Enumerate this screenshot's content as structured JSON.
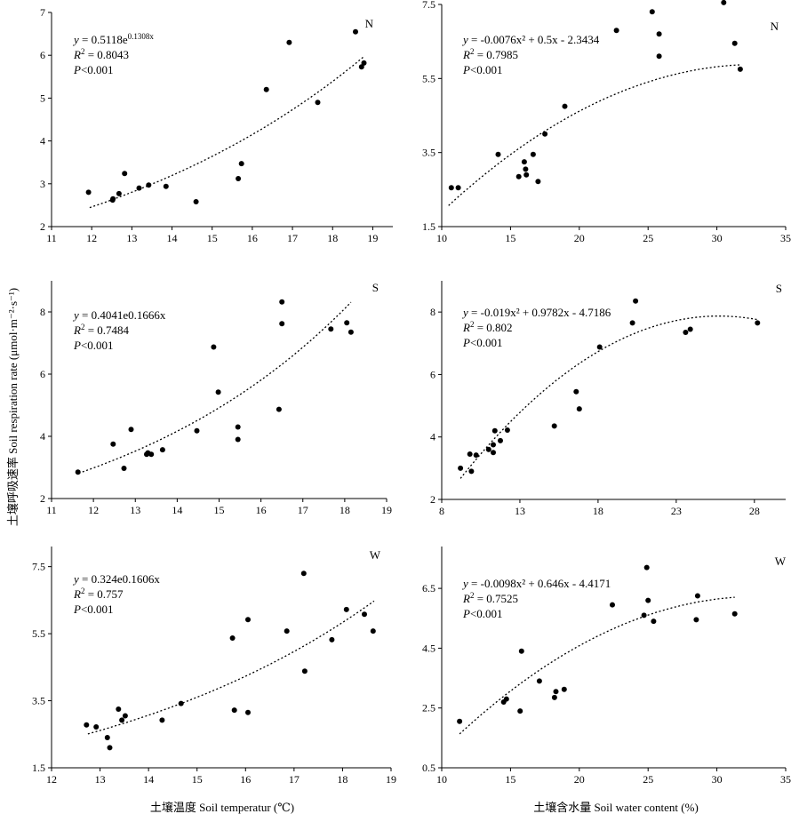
{
  "figure": {
    "ylabel": "土壤呼吸速率 Soil respiration rate (μmol·m⁻²·s⁻¹)",
    "xlabel_left": "土壤温度 Soil temperatur (℃)",
    "xlabel_right": "土壤含水量 Soil water content (%)"
  },
  "chart_data": [
    {
      "type": "scatter",
      "panel": "N",
      "xlim": [
        11,
        19.5
      ],
      "ylim": [
        2,
        7
      ],
      "xticks": [
        11,
        12,
        13,
        14,
        15,
        16,
        17,
        18,
        19
      ],
      "yticks": [
        2,
        3,
        4,
        5,
        6,
        7
      ],
      "fit_type": "exp",
      "a": 0.5118,
      "b": 0.1308,
      "fit_range": [
        11.95,
        18.8
      ],
      "equation": "y = 0.5118e^0.1308x",
      "eq_main": "y = 0.5118e",
      "eq_sup": "0.1308x",
      "r2": "= 0.8043",
      "p": "<0.001",
      "points": [
        [
          11.92,
          2.8
        ],
        [
          12.52,
          2.62
        ],
        [
          12.53,
          2.65
        ],
        [
          12.68,
          2.77
        ],
        [
          12.82,
          3.24
        ],
        [
          13.18,
          2.9
        ],
        [
          13.42,
          2.97
        ],
        [
          13.85,
          2.94
        ],
        [
          14.6,
          2.58
        ],
        [
          15.65,
          3.12
        ],
        [
          15.73,
          3.47
        ],
        [
          16.35,
          5.2
        ],
        [
          16.92,
          6.3
        ],
        [
          17.63,
          4.9
        ],
        [
          18.57,
          6.55
        ],
        [
          18.72,
          5.73
        ],
        [
          18.78,
          5.82
        ]
      ]
    },
    {
      "type": "scatter",
      "panel": "N",
      "xlim": [
        10,
        35
      ],
      "ylim": [
        1.5,
        7.5
      ],
      "xticks": [
        10,
        15,
        20,
        25,
        30,
        35
      ],
      "yticks": [
        1.5,
        3.5,
        5.5,
        7.5
      ],
      "fit_type": "poly",
      "c2": -0.0076,
      "c1": 0.5,
      "c0": -2.3434,
      "fit_range": [
        10.5,
        31.7
      ],
      "equation": "y = -0.0076x² + 0.5x - 2.3434",
      "eq_main": "y = -0.0076x² + 0.5x - 2.3434",
      "eq_sup": "",
      "r2": "= 0.7985",
      "p": "<0.001",
      "points": [
        [
          10.7,
          2.55
        ],
        [
          11.2,
          2.55
        ],
        [
          14.1,
          3.45
        ],
        [
          15.6,
          2.85
        ],
        [
          16.0,
          3.25
        ],
        [
          16.1,
          3.05
        ],
        [
          16.15,
          2.9
        ],
        [
          16.65,
          3.45
        ],
        [
          17.0,
          2.72
        ],
        [
          17.5,
          4.0
        ],
        [
          18.95,
          4.75
        ],
        [
          22.7,
          6.8
        ],
        [
          25.3,
          7.3
        ],
        [
          25.8,
          6.7
        ],
        [
          25.8,
          6.1
        ],
        [
          30.5,
          7.55
        ],
        [
          31.3,
          6.45
        ],
        [
          31.7,
          5.75
        ]
      ]
    },
    {
      "type": "scatter",
      "panel": "S",
      "xlim": [
        11,
        19
      ],
      "ylim": [
        2,
        9
      ],
      "xticks": [
        11,
        12,
        13,
        14,
        15,
        16,
        17,
        18,
        19
      ],
      "yticks": [
        2,
        4,
        6,
        8
      ],
      "fit_type": "exp",
      "a": 0.4041,
      "b": 0.1666,
      "fit_range": [
        11.65,
        18.15
      ],
      "equation": "y = 0.4041e0.1666x",
      "eq_main": "y = 0.4041e0.1666x",
      "eq_sup": "",
      "r2": "= 0.7484",
      "p": "<0.001",
      "points": [
        [
          11.63,
          2.85
        ],
        [
          12.47,
          3.75
        ],
        [
          12.73,
          2.97
        ],
        [
          12.9,
          4.22
        ],
        [
          13.27,
          3.42
        ],
        [
          13.3,
          3.47
        ],
        [
          13.38,
          3.42
        ],
        [
          13.65,
          3.57
        ],
        [
          14.47,
          4.18
        ],
        [
          14.87,
          6.87
        ],
        [
          14.98,
          5.42
        ],
        [
          15.45,
          4.3
        ],
        [
          15.45,
          3.9
        ],
        [
          16.43,
          4.87
        ],
        [
          16.5,
          7.62
        ],
        [
          16.5,
          8.32
        ],
        [
          17.67,
          7.45
        ],
        [
          18.05,
          7.65
        ],
        [
          18.15,
          7.35
        ]
      ]
    },
    {
      "type": "scatter",
      "panel": "S",
      "xlim": [
        8,
        30
      ],
      "ylim": [
        2,
        9
      ],
      "xticks": [
        8,
        13,
        18,
        23,
        28
      ],
      "yticks": [
        2,
        4,
        6,
        8
      ],
      "fit_type": "poly",
      "c2": -0.019,
      "c1": 0.9782,
      "c0": -4.7186,
      "fit_range": [
        9.2,
        28.2
      ],
      "equation": "y = -0.019x² + 0.9782x - 4.7186",
      "eq_main": "y = -0.019x² + 0.9782x - 4.7186",
      "eq_sup": "",
      "r2": "= 0.802",
      "p": "<0.001",
      "points": [
        [
          9.2,
          3.0
        ],
        [
          9.8,
          3.45
        ],
        [
          9.9,
          2.9
        ],
        [
          10.2,
          3.42
        ],
        [
          11.0,
          3.6
        ],
        [
          11.3,
          3.5
        ],
        [
          11.3,
          3.75
        ],
        [
          11.4,
          4.2
        ],
        [
          11.75,
          3.88
        ],
        [
          12.2,
          4.22
        ],
        [
          15.2,
          4.35
        ],
        [
          16.6,
          5.45
        ],
        [
          16.8,
          4.9
        ],
        [
          18.1,
          6.88
        ],
        [
          20.2,
          7.65
        ],
        [
          20.4,
          8.35
        ],
        [
          23.6,
          7.35
        ],
        [
          23.9,
          7.45
        ],
        [
          28.2,
          7.65
        ]
      ]
    },
    {
      "type": "scatter",
      "panel": "W",
      "xlim": [
        12,
        19
      ],
      "ylim": [
        1.5,
        8.1
      ],
      "xticks": [
        12,
        13,
        14,
        15,
        16,
        17,
        18,
        19
      ],
      "yticks": [
        1.5,
        3.5,
        5.5,
        7.5
      ],
      "fit_type": "exp",
      "a": 0.324,
      "b": 0.1606,
      "fit_range": [
        12.75,
        18.65
      ],
      "equation": "y = 0.324e0.1606x",
      "eq_main": "y = 0.324e0.1606x",
      "eq_sup": "",
      "r2": "= 0.757",
      "p": "<0.001",
      "points": [
        [
          12.72,
          2.78
        ],
        [
          12.92,
          2.72
        ],
        [
          13.15,
          2.4
        ],
        [
          13.2,
          2.1
        ],
        [
          13.38,
          3.25
        ],
        [
          13.45,
          2.92
        ],
        [
          13.52,
          3.05
        ],
        [
          14.28,
          2.92
        ],
        [
          14.67,
          3.42
        ],
        [
          15.73,
          5.37
        ],
        [
          15.77,
          3.22
        ],
        [
          16.05,
          3.15
        ],
        [
          16.05,
          5.92
        ],
        [
          16.85,
          5.58
        ],
        [
          17.2,
          7.3
        ],
        [
          17.22,
          4.38
        ],
        [
          17.78,
          5.32
        ],
        [
          18.08,
          6.22
        ],
        [
          18.45,
          6.08
        ],
        [
          18.63,
          5.58
        ]
      ]
    },
    {
      "type": "scatter",
      "panel": "W",
      "xlim": [
        10,
        35
      ],
      "ylim": [
        0.5,
        7.9
      ],
      "xticks": [
        10,
        15,
        20,
        25,
        30,
        35
      ],
      "yticks": [
        0.5,
        2.5,
        4.5,
        6.5
      ],
      "fit_type": "poly",
      "c2": -0.0098,
      "c1": 0.646,
      "c0": -4.4171,
      "fit_range": [
        11.3,
        31.3
      ],
      "equation": "y = -0.0098x² + 0.646x - 4.4171",
      "eq_main": "y = -0.0098x² + 0.646x - 4.4171",
      "eq_sup": "",
      "r2": "= 0.7525",
      "p": "<0.001",
      "points": [
        [
          11.3,
          2.05
        ],
        [
          14.5,
          2.7
        ],
        [
          14.7,
          2.8
        ],
        [
          15.7,
          2.4
        ],
        [
          15.8,
          4.4
        ],
        [
          17.1,
          3.4
        ],
        [
          18.2,
          2.85
        ],
        [
          18.3,
          3.05
        ],
        [
          18.9,
          3.12
        ],
        [
          22.4,
          5.95
        ],
        [
          24.7,
          5.6
        ],
        [
          24.9,
          7.2
        ],
        [
          25.0,
          6.1
        ],
        [
          25.4,
          5.4
        ],
        [
          28.5,
          5.45
        ],
        [
          28.6,
          6.25
        ],
        [
          31.3,
          5.65
        ]
      ]
    }
  ]
}
